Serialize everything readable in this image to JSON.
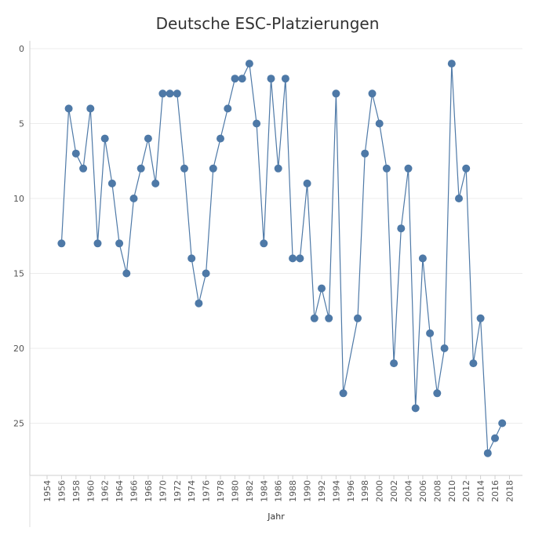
{
  "chart_data": {
    "type": "line",
    "title": "Deutsche ESC-Platzierungen",
    "xlabel": "Jahr",
    "ylabel": "",
    "x_ticks": [
      1954,
      1956,
      1958,
      1960,
      1962,
      1964,
      1966,
      1968,
      1970,
      1972,
      1974,
      1976,
      1978,
      1980,
      1982,
      1984,
      1986,
      1988,
      1990,
      1992,
      1994,
      1996,
      1998,
      2000,
      2002,
      2004,
      2006,
      2008,
      2010,
      2012,
      2014,
      2016,
      2018
    ],
    "y_ticks": [
      0,
      5,
      10,
      15,
      20,
      25
    ],
    "xlim": [
      1953,
      2019
    ],
    "ylim": [
      0,
      28.5
    ],
    "y_reversed": true,
    "grid": "horizontal",
    "color": "#4e79a7",
    "points": [
      {
        "x": 1956,
        "y": 13
      },
      {
        "x": 1957,
        "y": 4
      },
      {
        "x": 1958,
        "y": 7
      },
      {
        "x": 1959,
        "y": 8
      },
      {
        "x": 1960,
        "y": 4
      },
      {
        "x": 1961,
        "y": 13
      },
      {
        "x": 1962,
        "y": 6
      },
      {
        "x": 1963,
        "y": 9
      },
      {
        "x": 1964,
        "y": 13
      },
      {
        "x": 1965,
        "y": 15
      },
      {
        "x": 1966,
        "y": 10
      },
      {
        "x": 1967,
        "y": 8
      },
      {
        "x": 1968,
        "y": 6
      },
      {
        "x": 1969,
        "y": 9
      },
      {
        "x": 1970,
        "y": 3
      },
      {
        "x": 1971,
        "y": 3
      },
      {
        "x": 1972,
        "y": 3
      },
      {
        "x": 1973,
        "y": 8
      },
      {
        "x": 1974,
        "y": 14
      },
      {
        "x": 1975,
        "y": 17
      },
      {
        "x": 1976,
        "y": 15
      },
      {
        "x": 1977,
        "y": 8
      },
      {
        "x": 1978,
        "y": 6
      },
      {
        "x": 1979,
        "y": 4
      },
      {
        "x": 1980,
        "y": 2
      },
      {
        "x": 1981,
        "y": 2
      },
      {
        "x": 1982,
        "y": 1
      },
      {
        "x": 1983,
        "y": 5
      },
      {
        "x": 1984,
        "y": 13
      },
      {
        "x": 1985,
        "y": 2
      },
      {
        "x": 1986,
        "y": 8
      },
      {
        "x": 1987,
        "y": 2
      },
      {
        "x": 1988,
        "y": 14
      },
      {
        "x": 1989,
        "y": 14
      },
      {
        "x": 1990,
        "y": 9
      },
      {
        "x": 1991,
        "y": 18
      },
      {
        "x": 1992,
        "y": 16
      },
      {
        "x": 1993,
        "y": 18
      },
      {
        "x": 1994,
        "y": 3
      },
      {
        "x": 1995,
        "y": 23
      },
      {
        "x": 1997,
        "y": 18
      },
      {
        "x": 1998,
        "y": 7
      },
      {
        "x": 1999,
        "y": 3
      },
      {
        "x": 2000,
        "y": 5
      },
      {
        "x": 2001,
        "y": 8
      },
      {
        "x": 2002,
        "y": 21
      },
      {
        "x": 2003,
        "y": 12
      },
      {
        "x": 2004,
        "y": 8
      },
      {
        "x": 2005,
        "y": 24
      },
      {
        "x": 2006,
        "y": 14
      },
      {
        "x": 2007,
        "y": 19
      },
      {
        "x": 2008,
        "y": 23
      },
      {
        "x": 2009,
        "y": 20
      },
      {
        "x": 2010,
        "y": 1
      },
      {
        "x": 2011,
        "y": 10
      },
      {
        "x": 2012,
        "y": 8
      },
      {
        "x": 2013,
        "y": 21
      },
      {
        "x": 2014,
        "y": 18
      },
      {
        "x": 2015,
        "y": 27
      },
      {
        "x": 2016,
        "y": 26
      },
      {
        "x": 2017,
        "y": 25
      }
    ]
  }
}
